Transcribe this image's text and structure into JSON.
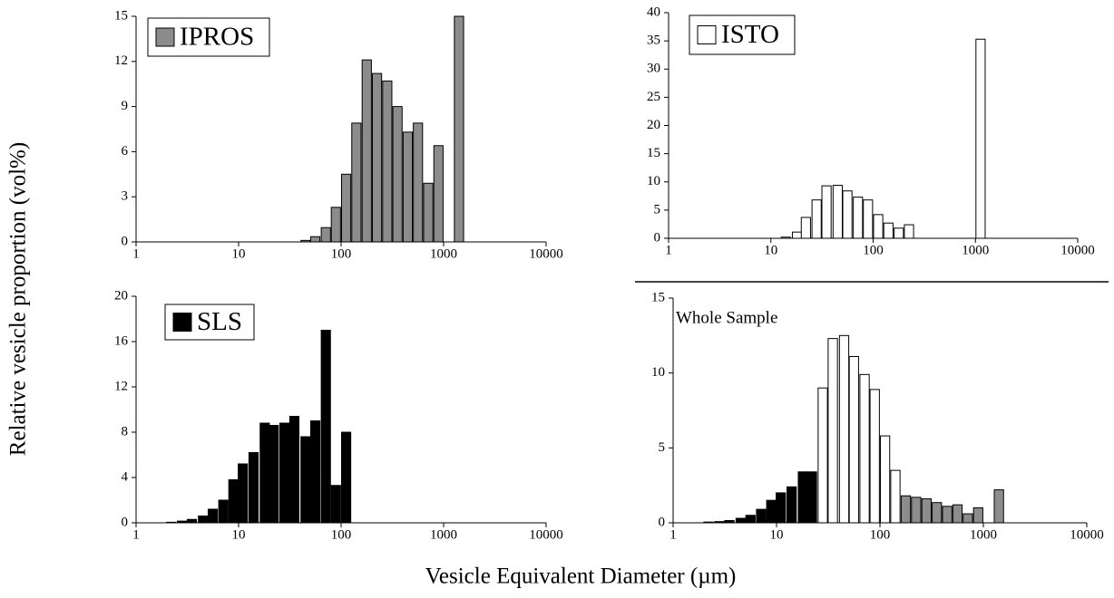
{
  "ylabel": "Relative vesicle proportion (vol%)",
  "xlabel": "Vesicle Equivalent Diameter (µm)",
  "chart_data": [
    {
      "type": "bar",
      "xlog": true,
      "xlim": [
        1,
        10000
      ],
      "xticks": [
        1,
        10,
        100,
        1000,
        10000
      ],
      "ylim": [
        0,
        15
      ],
      "yticks": [
        0,
        3,
        6,
        9,
        12,
        15
      ],
      "series": [
        {
          "name": "IPROS",
          "color": "#8c8c8c",
          "x": [
            45,
            56,
            71,
            89,
            112,
            141,
            178,
            224,
            282,
            355,
            447,
            562,
            708,
            891,
            1413
          ],
          "values": [
            0.1,
            0.35,
            0.95,
            2.3,
            4.5,
            7.9,
            12.1,
            11.2,
            10.7,
            9.0,
            7.3,
            7.9,
            3.9,
            6.4,
            15
          ]
        }
      ]
    },
    {
      "type": "bar",
      "xlog": true,
      "xlim": [
        1,
        10000
      ],
      "xticks": [
        1,
        10,
        100,
        1000,
        10000
      ],
      "ylim": [
        0,
        40
      ],
      "yticks": [
        0,
        5,
        10,
        15,
        20,
        25,
        30,
        35,
        40
      ],
      "series": [
        {
          "name": "ISTO",
          "color": "#ffffff",
          "x": [
            14,
            18,
            22,
            28,
            35,
            45,
            56,
            71,
            89,
            112,
            141,
            178,
            224,
            1122
          ],
          "values": [
            0.2,
            1.1,
            3.7,
            6.8,
            9.3,
            9.4,
            8.4,
            7.3,
            6.8,
            4.2,
            2.7,
            1.8,
            2.4,
            35.3
          ]
        }
      ]
    },
    {
      "type": "bar",
      "xlog": true,
      "xlim": [
        1,
        10000
      ],
      "xticks": [
        1,
        10,
        100,
        1000,
        10000
      ],
      "ylim": [
        0,
        20
      ],
      "yticks": [
        0,
        4,
        8,
        12,
        16,
        20
      ],
      "series": [
        {
          "name": "SLS",
          "color": "#000000",
          "x": [
            2.2,
            2.8,
            3.5,
            4.5,
            5.6,
            7.1,
            8.9,
            11,
            14,
            18,
            22,
            28,
            35,
            45,
            56,
            71,
            89,
            112
          ],
          "values": [
            0.05,
            0.15,
            0.3,
            0.6,
            1.2,
            2.0,
            3.8,
            5.2,
            6.2,
            8.8,
            8.6,
            8.8,
            9.4,
            7.6,
            9.0,
            17,
            3.3,
            8.0
          ]
        }
      ]
    },
    {
      "type": "bar",
      "title": "Whole Sample",
      "xlog": true,
      "xlim": [
        1,
        10000
      ],
      "xticks": [
        1,
        10,
        100,
        1000,
        10000
      ],
      "ylim": [
        0,
        15
      ],
      "yticks": [
        0,
        5,
        10,
        15
      ],
      "series": [
        {
          "color": "#000000",
          "x": [
            2.2,
            2.8,
            3.5,
            4.5,
            5.6,
            7.1,
            8.9,
            11,
            14,
            18,
            22
          ],
          "values": [
            0.05,
            0.08,
            0.15,
            0.3,
            0.5,
            0.9,
            1.5,
            2.0,
            2.4,
            3.4,
            3.4
          ]
        },
        {
          "color": "#ffffff",
          "x": [
            28,
            35,
            45,
            56,
            71,
            89,
            112,
            141
          ],
          "values": [
            9.0,
            12.3,
            12.5,
            11.1,
            9.9,
            8.9,
            5.8,
            3.5
          ]
        },
        {
          "color": "#8c8c8c",
          "x": [
            178,
            224,
            282,
            355,
            447,
            562,
            708,
            891,
            1413
          ],
          "values": [
            1.8,
            1.7,
            1.6,
            1.35,
            1.1,
            1.2,
            0.6,
            1.0,
            2.2
          ]
        }
      ]
    }
  ]
}
